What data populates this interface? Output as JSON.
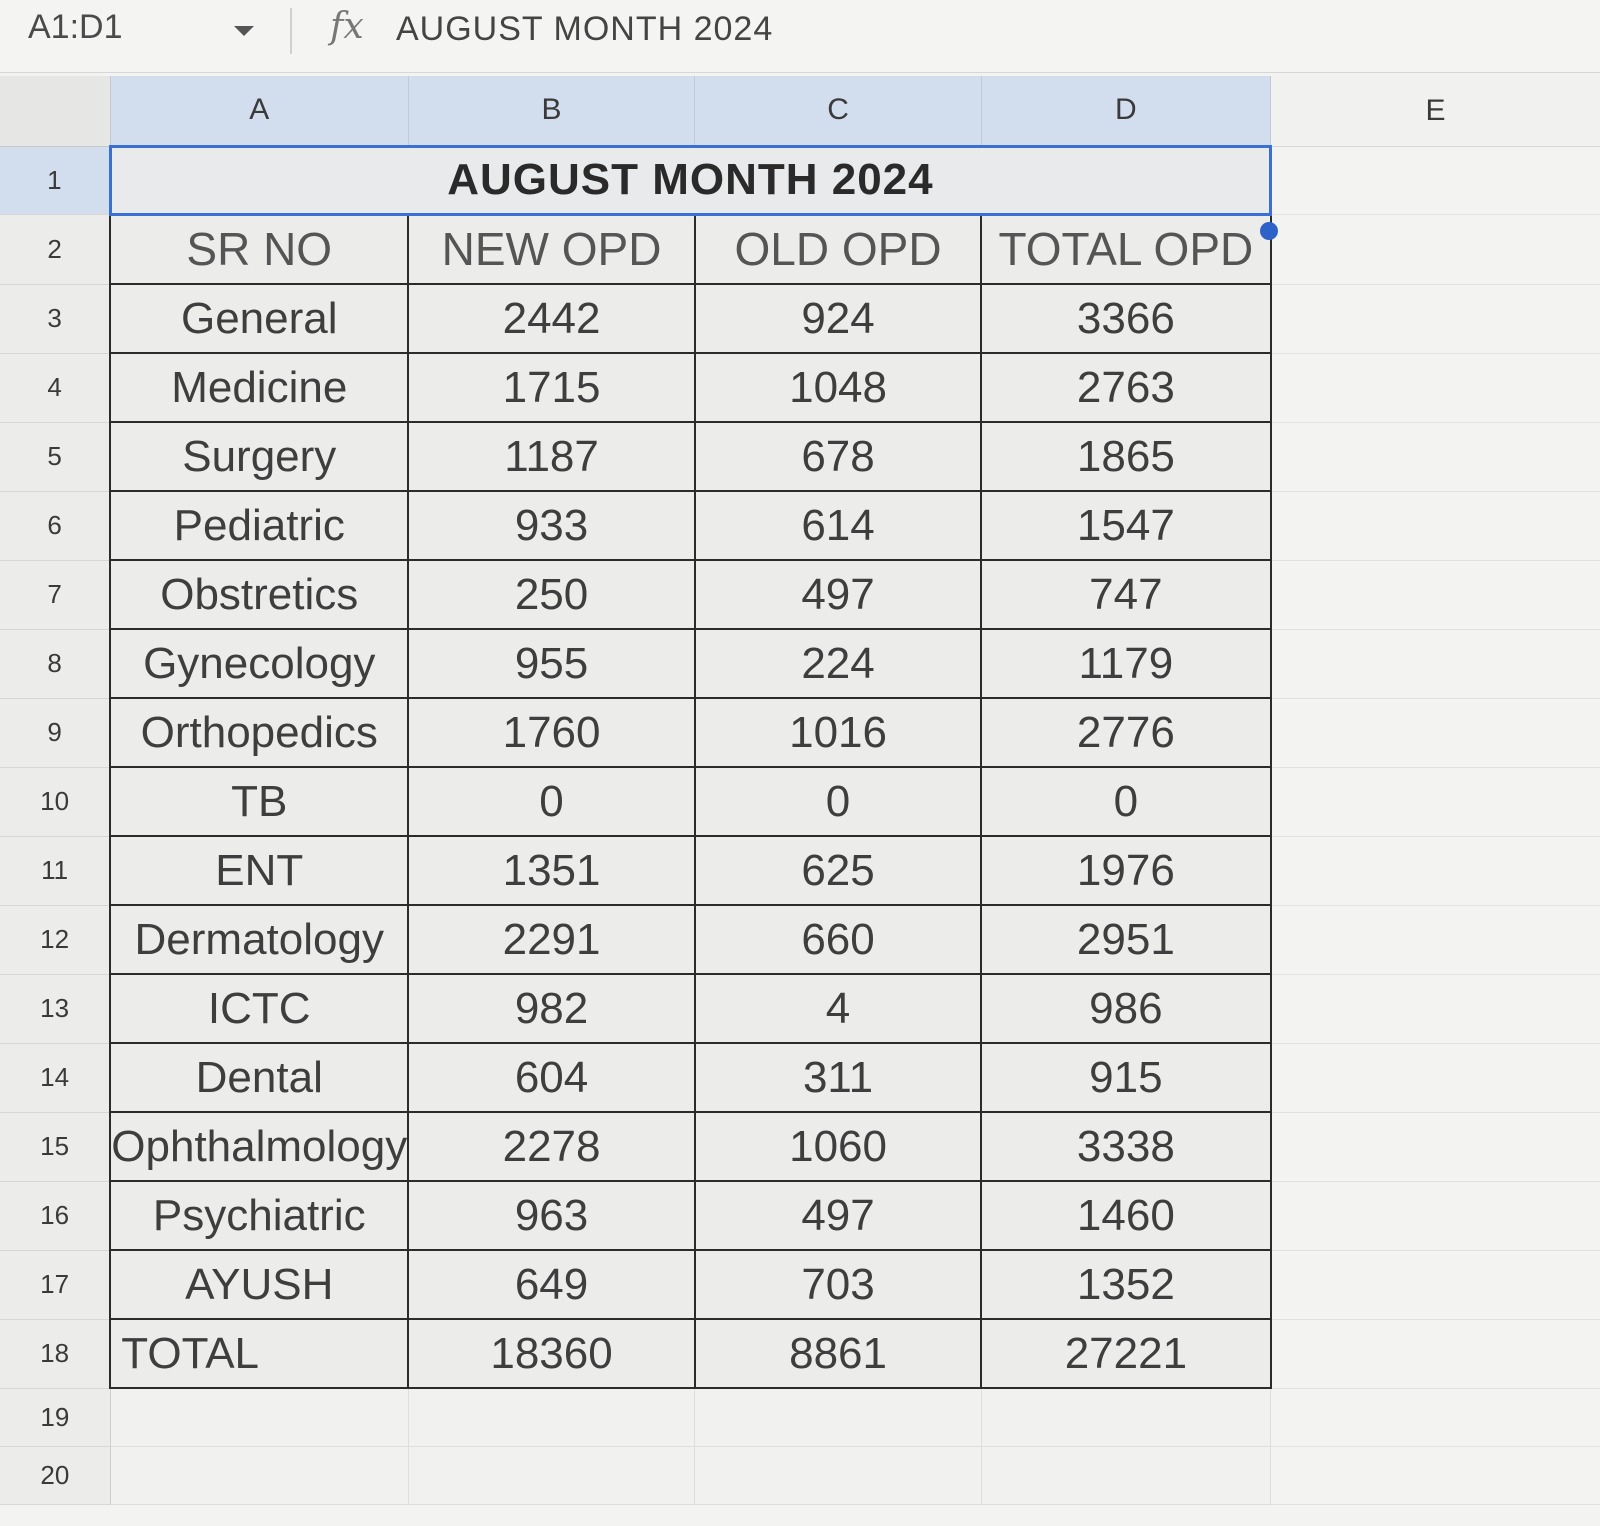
{
  "formula_bar": {
    "name_box": "A1:D1",
    "fx_icon": "function-fx-icon",
    "formula": "AUGUST MONTH 2024"
  },
  "columns": [
    "A",
    "B",
    "C",
    "D",
    "E"
  ],
  "row_numbers": [
    "1",
    "2",
    "3",
    "4",
    "5",
    "6",
    "7",
    "8",
    "9",
    "10",
    "11",
    "12",
    "13",
    "14",
    "15",
    "16",
    "17",
    "18",
    "19",
    "20"
  ],
  "sheet": {
    "title": "AUGUST MONTH 2024",
    "headers": [
      "SR NO",
      "NEW OPD",
      "OLD OPD",
      "TOTAL OPD"
    ],
    "rows": [
      [
        "General",
        "2442",
        "924",
        "3366"
      ],
      [
        "Medicine",
        "1715",
        "1048",
        "2763"
      ],
      [
        "Surgery",
        "1187",
        "678",
        "1865"
      ],
      [
        "Pediatric",
        "933",
        "614",
        "1547"
      ],
      [
        "Obstretics",
        "250",
        "497",
        "747"
      ],
      [
        "Gynecology",
        "955",
        "224",
        "1179"
      ],
      [
        "Orthopedics",
        "1760",
        "1016",
        "2776"
      ],
      [
        "TB",
        "0",
        "0",
        "0"
      ],
      [
        "ENT",
        "1351",
        "625",
        "1976"
      ],
      [
        "Dermatology",
        "2291",
        "660",
        "2951"
      ],
      [
        "ICTC",
        "982",
        "4",
        "986"
      ],
      [
        "Dental",
        "604",
        "311",
        "915"
      ],
      [
        "Ophthalmology",
        "2278",
        "1060",
        "3338"
      ],
      [
        "Psychiatric",
        "963",
        "497",
        "1460"
      ],
      [
        "AYUSH",
        "649",
        "703",
        "1352"
      ],
      [
        "TOTAL",
        "18360",
        "8861",
        "27221"
      ]
    ]
  },
  "colors": {
    "selection": "#3b6fd4",
    "header_selected": "#d2ddee",
    "cell_border": "#2b2b2b"
  }
}
